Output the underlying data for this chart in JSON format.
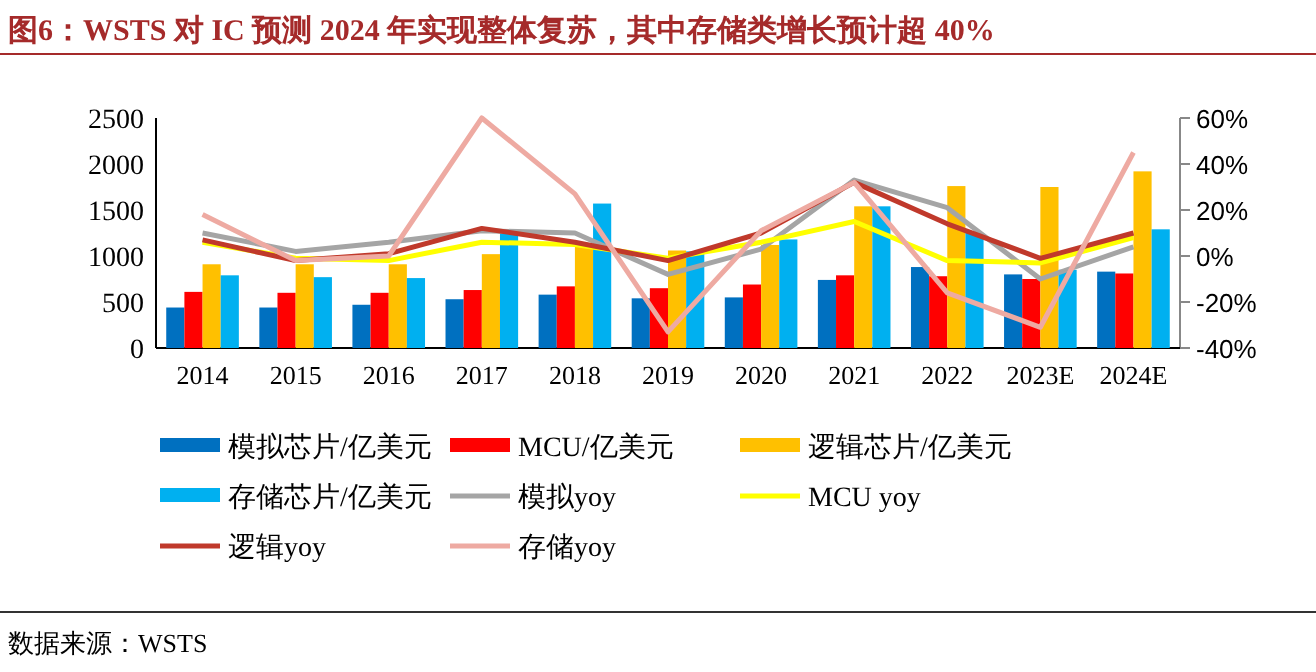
{
  "chart_data": {
    "type": "bar",
    "title": "图6：WSTS 对 IC 预测 2024 年实现整体复苏，其中存储类增长预计超 40%",
    "annotations": [
      "数据来源：WSTS"
    ],
    "categories": [
      "2014",
      "2015",
      "2016",
      "2017",
      "2018",
      "2019",
      "2020",
      "2021",
      "2022",
      "2023E",
      "2024E"
    ],
    "series": [
      {
        "name": "模拟芯片/亿美元",
        "color": "#0070c0",
        "values": [
          440,
          440,
          470,
          530,
          580,
          540,
          550,
          740,
          880,
          800,
          830
        ]
      },
      {
        "name": "MCU/亿美元",
        "color": "#ff0000",
        "values": [
          610,
          600,
          600,
          630,
          670,
          650,
          690,
          790,
          780,
          750,
          810
        ]
      },
      {
        "name": "逻辑芯片/亿美元",
        "color": "#ffc000",
        "values": [
          910,
          910,
          910,
          1020,
          1120,
          1060,
          1120,
          1540,
          1760,
          1750,
          1920
        ]
      },
      {
        "name": "存储芯片/亿美元",
        "color": "#00b0f0",
        "values": [
          790,
          770,
          760,
          1250,
          1570,
          1050,
          1180,
          1540,
          1250,
          850,
          1290
        ]
      },
      {
        "name": "模拟yoy",
        "type": "line",
        "axis": "y2",
        "color": "#a5a5a5",
        "values": [
          10,
          2,
          6,
          11,
          10,
          -8,
          3,
          33,
          21,
          -10,
          4
        ]
      },
      {
        "name": "MCU yoy",
        "type": "line",
        "axis": "y2",
        "color": "#ffff00",
        "values": [
          6,
          -1,
          -2,
          6,
          5,
          -1,
          6,
          15,
          -2,
          -3,
          8
        ]
      },
      {
        "name": "逻辑yoy",
        "type": "line",
        "axis": "y2",
        "color": "#c0392b",
        "values": [
          7,
          -2,
          1,
          12,
          6,
          -2,
          10,
          32,
          14,
          -1,
          10
        ]
      },
      {
        "name": "存储yoy",
        "type": "line",
        "axis": "y2",
        "color": "#eeaaa2",
        "values": [
          18,
          -2,
          0,
          60,
          27,
          -33,
          11,
          32,
          -16,
          -31,
          45
        ]
      }
    ],
    "ylim": [
      0,
      2500
    ],
    "yticks": [
      0,
      500,
      1000,
      1500,
      2000,
      2500
    ],
    "y2lim": [
      -40,
      60
    ],
    "y2ticks": [
      {
        "value": -40,
        "label": "-40%"
      },
      {
        "value": -20,
        "label": "-20%"
      },
      {
        "value": 0,
        "label": "0%"
      },
      {
        "value": 20,
        "label": "20%"
      },
      {
        "value": 40,
        "label": "40%"
      },
      {
        "value": 60,
        "label": "60%"
      }
    ],
    "legend": "bottom"
  }
}
